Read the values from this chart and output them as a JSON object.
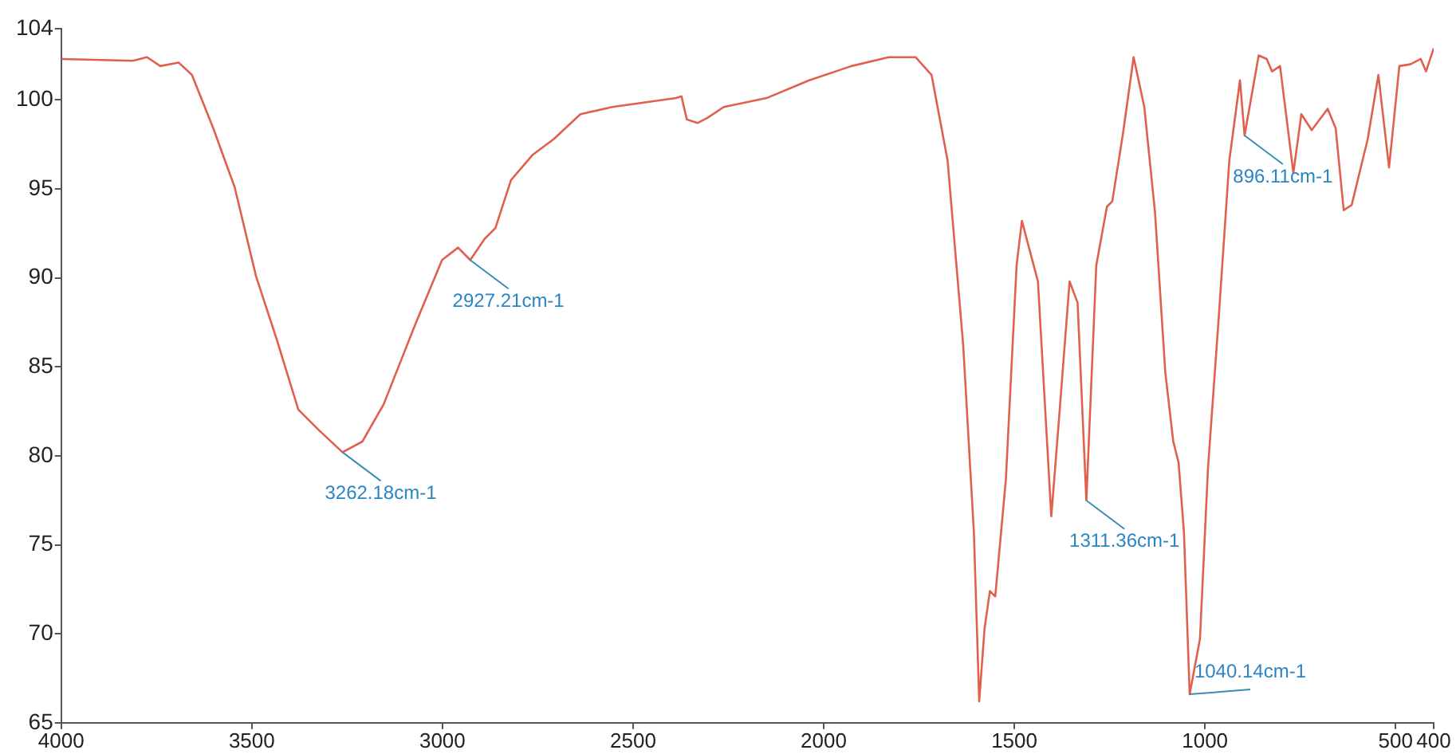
{
  "chart_data": {
    "type": "line",
    "grid": false,
    "legend": false,
    "marker": "none",
    "xlim": [
      4000,
      400
    ],
    "xticks": [
      4000,
      3500,
      3000,
      2500,
      2000,
      1500,
      1000,
      500,
      400
    ],
    "ylim": [
      65,
      104
    ],
    "yticks": [
      65,
      70,
      75,
      80,
      85,
      90,
      95,
      100,
      104
    ],
    "x": [
      4000,
      3812,
      3775,
      3740,
      3692,
      3657,
      3601,
      3545,
      3489,
      3434,
      3378,
      3322,
      3262,
      3210,
      3154,
      3071,
      3001,
      2959,
      2927,
      2889,
      2861,
      2820,
      2764,
      2708,
      2638,
      2555,
      2387,
      2373,
      2359,
      2331,
      2304,
      2262,
      2150,
      2038,
      1927,
      1829,
      1759,
      1717,
      1675,
      1634,
      1606,
      1592,
      1578,
      1564,
      1550,
      1522,
      1494,
      1480,
      1438,
      1403,
      1383,
      1355,
      1334,
      1311,
      1285,
      1257,
      1243,
      1215,
      1187,
      1159,
      1131,
      1104,
      1083,
      1069,
      1055,
      1040,
      1013,
      992,
      964,
      936,
      908,
      896,
      873,
      859,
      838,
      824,
      803,
      768,
      747,
      720,
      678,
      657,
      636,
      615,
      573,
      545,
      517,
      490,
      461,
      434,
      420,
      400
    ],
    "series": [
      {
        "color": "#e0604e",
        "values": [
          102.3,
          102.2,
          102.4,
          101.9,
          102.1,
          101.4,
          98.4,
          95.1,
          90.1,
          86.5,
          82.6,
          81.4,
          80.2,
          80.8,
          82.9,
          87.4,
          91.0,
          91.7,
          91.0,
          92.2,
          92.8,
          95.5,
          96.9,
          97.8,
          99.2,
          99.6,
          100.1,
          100.2,
          98.9,
          98.7,
          99.0,
          99.6,
          100.1,
          101.1,
          101.9,
          102.4,
          102.4,
          101.4,
          96.6,
          86.2,
          75.7,
          66.2,
          70.3,
          72.4,
          72.1,
          78.7,
          90.7,
          93.2,
          89.8,
          76.6,
          82.0,
          89.8,
          88.6,
          77.5,
          90.7,
          94.0,
          94.3,
          98.1,
          102.4,
          99.6,
          93.7,
          84.7,
          80.8,
          79.6,
          75.7,
          66.6,
          69.7,
          79.3,
          87.7,
          96.6,
          101.1,
          98.0,
          100.8,
          102.5,
          102.3,
          101.6,
          101.9,
          95.9,
          99.2,
          98.3,
          99.5,
          98.4,
          93.8,
          94.1,
          97.8,
          101.4,
          96.2,
          101.9,
          102.0,
          102.3,
          101.6,
          102.9
        ]
      }
    ],
    "annotations": [
      {
        "text": "3262.18cm-1",
        "x": 3262.18,
        "y": 80.2
      },
      {
        "text": "2927.21cm-1",
        "x": 2927.21,
        "y": 91.0
      },
      {
        "text": "1311.36cm-1",
        "x": 1311.36,
        "y": 77.5
      },
      {
        "text": "1040.14cm-1",
        "x": 1040.14,
        "y": 66.6
      },
      {
        "text": "896.11cm-1",
        "x": 896.11,
        "y": 98.0
      }
    ]
  }
}
